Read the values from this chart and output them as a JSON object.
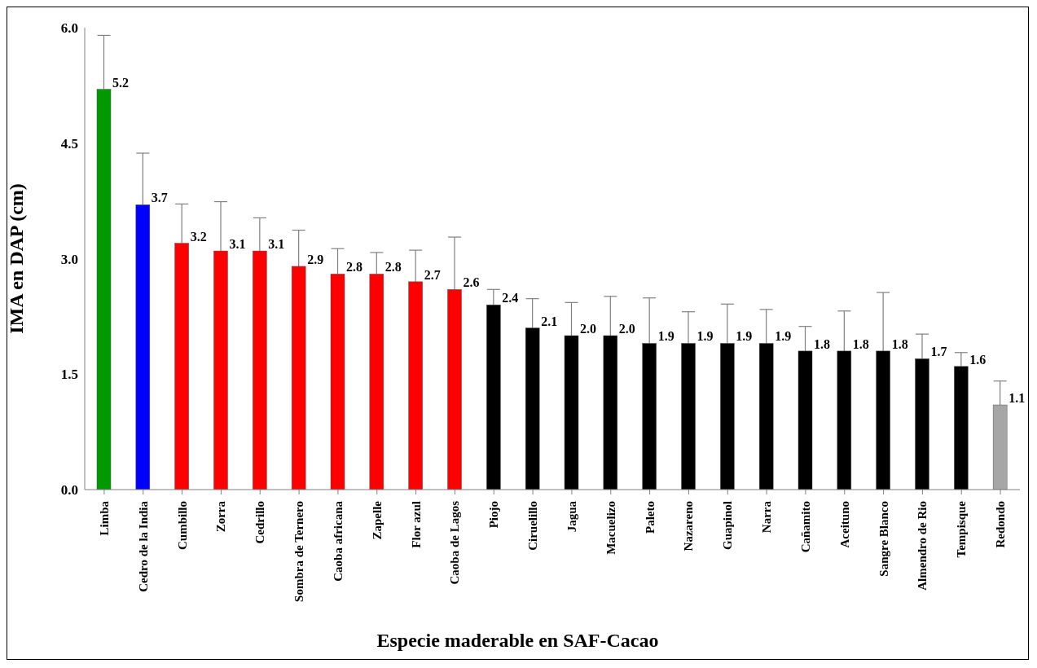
{
  "chart_data": {
    "type": "bar",
    "xlabel": "Especie maderable en SAF-Cacao",
    "ylabel": "IMA en DAP (cm)",
    "categories": [
      "Limba",
      "Cedro de la India",
      "Cumbillo",
      "Zorra",
      "Cedrillo",
      "Sombra de Ternero",
      "Caoba africana",
      "Zapelle",
      "Flor azul",
      "Caoba de Lagos",
      "Piojo",
      "Ciruelillo",
      "Jagua",
      "Macuelizo",
      "Paleto",
      "Nazareno",
      "Guapinol",
      "Narra",
      "Cañamito",
      "Aceituno",
      "Sangre Blanco",
      "Almendro de Rio",
      "Tempisque",
      "Redondo"
    ],
    "values": [
      5.2,
      3.7,
      3.2,
      3.1,
      3.1,
      2.9,
      2.8,
      2.8,
      2.7,
      2.6,
      2.4,
      2.1,
      2.0,
      2.0,
      1.9,
      1.9,
      1.9,
      1.9,
      1.8,
      1.8,
      1.8,
      1.7,
      1.6,
      1.1
    ],
    "errors": [
      [
        5.2,
        5.9
      ],
      [
        3.7,
        4.37
      ],
      [
        3.2,
        3.71
      ],
      [
        3.1,
        3.74
      ],
      [
        3.1,
        3.53
      ],
      [
        2.9,
        3.37
      ],
      [
        2.8,
        3.13
      ],
      [
        2.8,
        3.08
      ],
      [
        2.7,
        3.11
      ],
      [
        2.6,
        3.28
      ],
      [
        2.4,
        2.6
      ],
      [
        2.1,
        2.48
      ],
      [
        2.0,
        2.43
      ],
      [
        2.0,
        2.51
      ],
      [
        1.9,
        2.49
      ],
      [
        1.9,
        2.31
      ],
      [
        1.9,
        2.41
      ],
      [
        1.9,
        2.34
      ],
      [
        1.8,
        2.12
      ],
      [
        1.8,
        2.32
      ],
      [
        1.8,
        2.56
      ],
      [
        1.7,
        2.02
      ],
      [
        1.6,
        1.78
      ],
      [
        1.1,
        1.41
      ]
    ],
    "colors": [
      "#009900",
      "#0000ff",
      "#ff0000",
      "#ff0000",
      "#ff0000",
      "#ff0000",
      "#ff0000",
      "#ff0000",
      "#ff0000",
      "#ff0000",
      "#000000",
      "#000000",
      "#000000",
      "#000000",
      "#000000",
      "#000000",
      "#000000",
      "#000000",
      "#000000",
      "#000000",
      "#000000",
      "#000000",
      "#000000",
      "#a6a6a6"
    ],
    "ylim": [
      0,
      6
    ],
    "yticks": [
      {
        "value": 0,
        "label": "0.0"
      },
      {
        "value": 1.5,
        "label": "1.5"
      },
      {
        "value": 3,
        "label": "3.0"
      },
      {
        "value": 4.5,
        "label": "4.5"
      },
      {
        "value": 6,
        "label": "6.0"
      }
    ],
    "value_labels": [
      "5.2",
      "3.7",
      "3.2",
      "3.1",
      "3.1",
      "2.9",
      "2.8",
      "2.8",
      "2.7",
      "2.6",
      "2.4",
      "2.1",
      "2.0",
      "2.0",
      "1.9",
      "1.9",
      "1.9",
      "1.9",
      "1.8",
      "1.8",
      "1.8",
      "1.7",
      "1.6",
      "1.1"
    ],
    "grid": false,
    "legend": false
  }
}
